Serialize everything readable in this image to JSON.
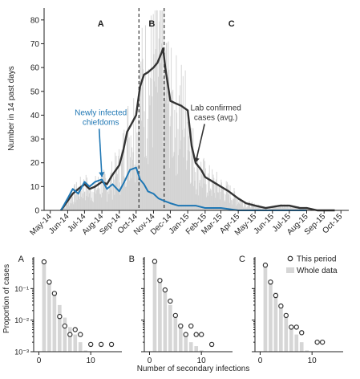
{
  "colors": {
    "lab": "#333333",
    "chiefdoms": "#1f77b4",
    "daily_bars": "#d3d3d3",
    "bars_whole": "#d6d6d6",
    "marker": "#333333"
  },
  "chart_data": [
    {
      "type": "line",
      "title": "",
      "ylabel": "Number in 14 past days",
      "xlabel": "",
      "ylim": [
        0,
        85
      ],
      "yticks": [
        0,
        10,
        20,
        30,
        40,
        50,
        60,
        70,
        80
      ],
      "xticks": [
        "May-14",
        "Jun-14",
        "Jul-14",
        "Aug-14",
        "Sep-14",
        "Oct-14",
        "Nov-14",
        "Dec-14",
        "Jan-15",
        "Feb-15",
        "Mar-15",
        "Apr-15",
        "May-15",
        "Jun-15",
        "Jul-15",
        "Aug-15",
        "Sep-15",
        "Oct-15"
      ],
      "xlim": [
        "2014-04-20",
        "2015-10-15"
      ],
      "period_lines": [
        "2014-10-06",
        "2014-11-20"
      ],
      "period_labels": [
        {
          "label": "A",
          "date": "2014-07-30"
        },
        {
          "label": "B",
          "date": "2014-10-29"
        },
        {
          "label": "C",
          "date": "2015-03-20"
        }
      ],
      "annotations": [
        {
          "text_lines": [
            "Newly infected",
            "chiefdoms"
          ],
          "series": "chiefdoms",
          "text_at": [
            "2014-07-30",
            40
          ],
          "arrow_to": [
            "2014-08-01",
            14
          ]
        },
        {
          "text_lines": [
            "Lab confirmed",
            "cases (avg.)"
          ],
          "series": "lab",
          "text_at": [
            "2015-02-20",
            42
          ],
          "arrow_to": [
            "2015-01-15",
            20
          ]
        }
      ],
      "series": [
        {
          "key": "lab",
          "style": "line",
          "points": [
            [
              "2014-05-20",
              0
            ],
            [
              "2014-06-01",
              4
            ],
            [
              "2014-06-10",
              7
            ],
            [
              "2014-06-20",
              9
            ],
            [
              "2014-07-01",
              11
            ],
            [
              "2014-07-10",
              9
            ],
            [
              "2014-07-20",
              10
            ],
            [
              "2014-08-01",
              12
            ],
            [
              "2014-08-10",
              11
            ],
            [
              "2014-08-20",
              15
            ],
            [
              "2014-09-01",
              19
            ],
            [
              "2014-09-08",
              25
            ],
            [
              "2014-09-15",
              33
            ],
            [
              "2014-09-22",
              36
            ],
            [
              "2014-10-01",
              40
            ],
            [
              "2014-10-08",
              52
            ],
            [
              "2014-10-15",
              57
            ],
            [
              "2014-10-22",
              58
            ],
            [
              "2014-11-01",
              60
            ],
            [
              "2014-11-08",
              62
            ],
            [
              "2014-11-15",
              66
            ],
            [
              "2014-11-18",
              68
            ],
            [
              "2014-11-22",
              60
            ],
            [
              "2014-12-01",
              46
            ],
            [
              "2014-12-10",
              45
            ],
            [
              "2014-12-20",
              44
            ],
            [
              "2015-01-01",
              42
            ],
            [
              "2015-01-08",
              27
            ],
            [
              "2015-01-15",
              20
            ],
            [
              "2015-01-25",
              17
            ],
            [
              "2015-02-01",
              14
            ],
            [
              "2015-02-15",
              12
            ],
            [
              "2015-03-01",
              10
            ],
            [
              "2015-03-15",
              8
            ],
            [
              "2015-04-01",
              5
            ],
            [
              "2015-04-15",
              3
            ],
            [
              "2015-05-01",
              2
            ],
            [
              "2015-05-20",
              1
            ],
            [
              "2015-06-15",
              2
            ],
            [
              "2015-07-01",
              2
            ],
            [
              "2015-07-20",
              1
            ],
            [
              "2015-08-01",
              1
            ],
            [
              "2015-08-20",
              0
            ],
            [
              "2015-09-20",
              0
            ]
          ]
        },
        {
          "key": "chiefdoms",
          "style": "line",
          "points": [
            [
              "2014-05-20",
              0
            ],
            [
              "2014-06-01",
              5
            ],
            [
              "2014-06-10",
              9
            ],
            [
              "2014-06-20",
              7
            ],
            [
              "2014-07-01",
              12
            ],
            [
              "2014-07-10",
              10
            ],
            [
              "2014-07-20",
              12
            ],
            [
              "2014-08-01",
              13
            ],
            [
              "2014-08-10",
              9
            ],
            [
              "2014-08-20",
              11
            ],
            [
              "2014-09-01",
              8
            ],
            [
              "2014-09-10",
              12
            ],
            [
              "2014-09-20",
              17
            ],
            [
              "2014-10-01",
              18
            ],
            [
              "2014-10-08",
              13
            ],
            [
              "2014-10-15",
              11
            ],
            [
              "2014-10-22",
              8
            ],
            [
              "2014-11-01",
              7
            ],
            [
              "2014-11-10",
              5
            ],
            [
              "2014-11-20",
              4
            ],
            [
              "2014-12-01",
              3
            ],
            [
              "2014-12-15",
              2
            ],
            [
              "2015-01-01",
              2
            ],
            [
              "2015-01-15",
              2
            ],
            [
              "2015-02-01",
              1
            ],
            [
              "2015-03-01",
              1
            ],
            [
              "2015-04-01",
              0
            ],
            [
              "2015-08-01",
              0
            ]
          ]
        }
      ]
    },
    {
      "type": "bar",
      "panel": "A",
      "xlabel": "",
      "ylabel": "Proportion of cases",
      "yscale": "log",
      "ylim": [
        0.001,
        1
      ],
      "yticks": [
        "10⁻³",
        "10⁻²",
        "10⁻¹"
      ],
      "xlim": [
        -1,
        16
      ],
      "xticks": [
        0,
        10
      ],
      "whole_data": [
        [
          1,
          0.62
        ],
        [
          2,
          0.17
        ],
        [
          3,
          0.075
        ],
        [
          4,
          0.03
        ],
        [
          5,
          0.012
        ],
        [
          6,
          0.006
        ],
        [
          7,
          0.0035
        ],
        [
          8,
          0.002
        ],
        [
          9,
          0.0011
        ]
      ],
      "this_period": [
        [
          1,
          0.7
        ],
        [
          2,
          0.16
        ],
        [
          3,
          0.07
        ],
        [
          4,
          0.013
        ],
        [
          5,
          0.0065
        ],
        [
          6,
          0.0035
        ],
        [
          7,
          0.005
        ],
        [
          8,
          0.0035
        ],
        [
          10,
          0.0017
        ],
        [
          12,
          0.0017
        ],
        [
          14,
          0.0017
        ]
      ]
    },
    {
      "type": "bar",
      "panel": "B",
      "xlabel": "Number of secondary infections",
      "ylabel": "",
      "yscale": "log",
      "ylim": [
        0.001,
        1
      ],
      "xlim": [
        -1,
        16
      ],
      "xticks": [
        0,
        10
      ],
      "whole_data": [
        [
          1,
          0.62
        ],
        [
          2,
          0.17
        ],
        [
          3,
          0.075
        ],
        [
          4,
          0.03
        ],
        [
          5,
          0.012
        ],
        [
          6,
          0.006
        ],
        [
          7,
          0.0035
        ],
        [
          8,
          0.002
        ],
        [
          9,
          0.0015
        ],
        [
          10,
          0.0011
        ],
        [
          11,
          0.001
        ],
        [
          12,
          0.001
        ]
      ],
      "this_period": [
        [
          1,
          0.72
        ],
        [
          2,
          0.18
        ],
        [
          3,
          0.09
        ],
        [
          4,
          0.04
        ],
        [
          5,
          0.014
        ],
        [
          6,
          0.0065
        ],
        [
          7,
          0.0035
        ],
        [
          8,
          0.0065
        ],
        [
          9,
          0.0035
        ],
        [
          10,
          0.0035
        ],
        [
          12,
          0.0017
        ]
      ]
    },
    {
      "type": "bar",
      "panel": "C",
      "xlabel": "",
      "ylabel": "",
      "yscale": "log",
      "ylim": [
        0.001,
        1
      ],
      "xlim": [
        -1,
        16
      ],
      "xticks": [
        0,
        10
      ],
      "legend": {
        "this_period": "This period",
        "whole_data": "Whole data",
        "placement": "top-right"
      },
      "whole_data": [
        [
          1,
          0.62
        ],
        [
          2,
          0.17
        ],
        [
          3,
          0.075
        ],
        [
          4,
          0.03
        ],
        [
          5,
          0.012
        ],
        [
          6,
          0.006
        ],
        [
          7,
          0.0035
        ],
        [
          8,
          0.002
        ],
        [
          9,
          0.0011
        ],
        [
          11,
          0.001
        ],
        [
          12,
          0.001
        ]
      ],
      "this_period": [
        [
          1,
          0.55
        ],
        [
          2,
          0.16
        ],
        [
          3,
          0.06
        ],
        [
          4,
          0.028
        ],
        [
          5,
          0.014
        ],
        [
          6,
          0.006
        ],
        [
          7,
          0.006
        ],
        [
          8,
          0.004
        ],
        [
          11,
          0.002
        ],
        [
          12,
          0.002
        ]
      ]
    }
  ]
}
